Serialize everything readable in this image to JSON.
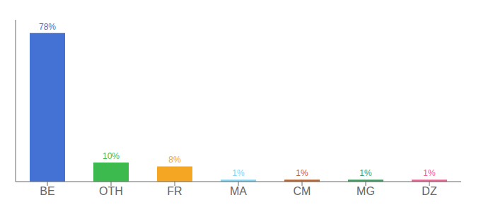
{
  "chart_data": {
    "type": "bar",
    "categories": [
      "BE",
      "OTH",
      "FR",
      "MA",
      "CM",
      "MG",
      "DZ"
    ],
    "values": [
      78,
      10,
      8,
      1,
      1,
      1,
      1
    ],
    "colors": [
      "#4472d4",
      "#3dba4e",
      "#f5a623",
      "#7fd4f5",
      "#c0622a",
      "#3a9e5f",
      "#f06090"
    ],
    "ylim": [
      0,
      85
    ],
    "data_labels": true,
    "value_labels": [
      "78%",
      "10%",
      "8%",
      "1%",
      "1%",
      "1%",
      "1%"
    ],
    "tick_labels": "x",
    "grid": false
  }
}
